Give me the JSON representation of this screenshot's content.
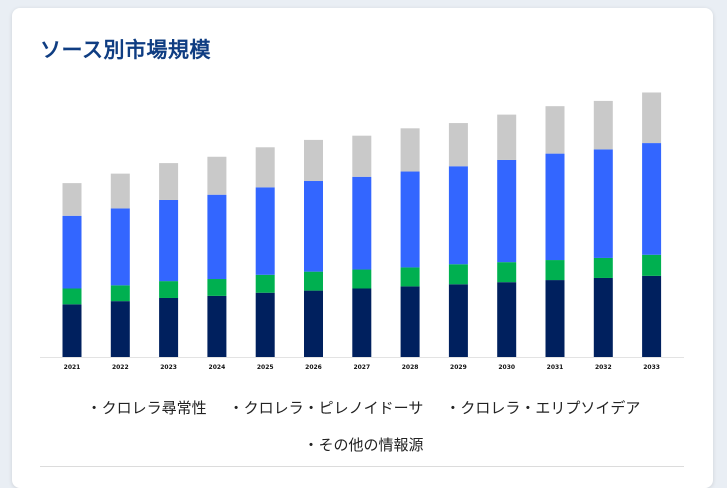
{
  "title": "ソース別市場規模",
  "colors": {
    "title": "#0f3d82",
    "series": [
      "#00205e",
      "#00b050",
      "#3366ff",
      "#c9c9c9"
    ]
  },
  "chart_data": {
    "type": "bar",
    "stacked": true,
    "categories": [
      "2021",
      "2022",
      "2023",
      "2024",
      "2025",
      "2026",
      "2027",
      "2028",
      "2029",
      "2030",
      "2031",
      "2032",
      "2033"
    ],
    "series": [
      {
        "name": "クロレラ尋常性",
        "values": [
          50,
          53,
          56,
          58,
          61,
          63,
          65,
          67,
          69,
          71,
          73,
          75,
          77
        ]
      },
      {
        "name": "クロレラ・ピレノイドーサ",
        "values": [
          15,
          15,
          16,
          16,
          17,
          18,
          18,
          18,
          19,
          19,
          19,
          19,
          20
        ]
      },
      {
        "name": "クロレラ・エリプソイデア",
        "values": [
          69,
          73,
          77,
          80,
          83,
          86,
          88,
          91,
          93,
          97,
          101,
          103,
          106
        ]
      },
      {
        "name": "その他の情報源",
        "values": [
          31,
          33,
          35,
          36,
          38,
          39,
          39,
          41,
          41,
          43,
          45,
          46,
          48
        ]
      }
    ],
    "ylim": [
      0,
      260
    ],
    "grid": false,
    "legend_position": "bottom"
  },
  "legend": {
    "items": [
      {
        "label": "・クロレラ尋常性"
      },
      {
        "label": "・クロレラ・ピレノイドーサ"
      },
      {
        "label": "・クロレラ・エリプソイデア"
      },
      {
        "label": "・その他の情報源"
      }
    ]
  }
}
